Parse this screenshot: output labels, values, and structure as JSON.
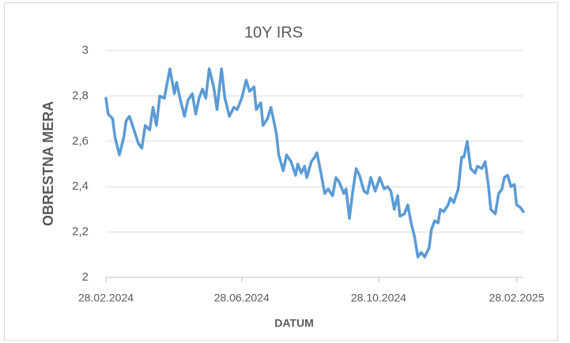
{
  "chart_data": {
    "type": "line",
    "title": "10Y IRS",
    "xlabel": "DATUM",
    "ylabel": "OBRESTNA MERA",
    "x": [
      "28.02.2024",
      "01.03.2024",
      "05.03.2024",
      "07.03.2024",
      "11.03.2024",
      "15.03.2024",
      "17.03.2024",
      "20.03.2024",
      "24.03.2024",
      "28.03.2024",
      "31.03.2024",
      "03.04.2024",
      "07.04.2024",
      "10.04.2024",
      "13.04.2024",
      "16.04.2024",
      "20.04.2024",
      "25.04.2024",
      "29.04.2024",
      "01.05.2024",
      "04.05.2024",
      "08.05.2024",
      "11.05.2024",
      "15.05.2024",
      "18.05.2024",
      "21.05.2024",
      "24.05.2024",
      "27.05.2024",
      "30.05.2024",
      "03.06.2024",
      "06.06.2024",
      "10.06.2024",
      "13.06.2024",
      "17.06.2024",
      "21.06.2024",
      "24.06.2024",
      "28.06.2024",
      "02.07.2024",
      "05.07.2024",
      "09.07.2024",
      "11.07.2024",
      "15.07.2024",
      "17.07.2024",
      "21.07.2024",
      "24.07.2024",
      "27.07.2024",
      "29.07.2024",
      "31.07.2024",
      "04.08.2024",
      "07.08.2024",
      "11.08.2024",
      "15.08.2024",
      "17.08.2024",
      "20.08.2024",
      "23.08.2024",
      "25.08.2024",
      "29.08.2024",
      "01.09.2024",
      "03.09.2024",
      "07.09.2024",
      "10.09.2024",
      "13.09.2024",
      "17.09.2024",
      "20.09.2024",
      "23.09.2024",
      "27.09.2024",
      "29.09.2024",
      "02.10.2024",
      "05.10.2024",
      "08.10.2024",
      "11.10.2024",
      "15.10.2024",
      "18.10.2024",
      "21.10.2024",
      "25.10.2024",
      "29.10.2024",
      "02.11.2024",
      "05.11.2024",
      "08.11.2024",
      "11.11.2024",
      "14.11.2024",
      "16.11.2024",
      "20.11.2024",
      "23.11.2024",
      "26.11.2024",
      "29.11.2024",
      "02.12.2024",
      "05.12.2024",
      "08.12.2024",
      "12.12.2024",
      "14.12.2024",
      "17.12.2024",
      "20.12.2024",
      "22.12.2024",
      "25.12.2024",
      "29.12.2024",
      "31.12.2024",
      "03.01.2025",
      "07.01.2025",
      "10.01.2025",
      "12.01.2025",
      "15.01.2025",
      "18.01.2025",
      "22.01.2025",
      "24.01.2025",
      "28.01.2025",
      "31.01.2025",
      "03.02.2025",
      "05.02.2025",
      "09.02.2025",
      "12.02.2025",
      "15.02.2025",
      "17.02.2025",
      "20.02.2025",
      "23.02.2025",
      "26.02.2025",
      "28.02.2025",
      "03.03.2025",
      "06.03.2025"
    ],
    "series": [
      {
        "name": "10Y IRS",
        "color": "#5b9bd5",
        "values": [
          2.79,
          2.72,
          2.7,
          2.62,
          2.54,
          2.62,
          2.69,
          2.71,
          2.65,
          2.59,
          2.57,
          2.67,
          2.65,
          2.75,
          2.67,
          2.8,
          2.79,
          2.92,
          2.81,
          2.86,
          2.79,
          2.71,
          2.78,
          2.81,
          2.72,
          2.79,
          2.83,
          2.79,
          2.92,
          2.84,
          2.74,
          2.92,
          2.79,
          2.71,
          2.75,
          2.74,
          2.79,
          2.87,
          2.82,
          2.84,
          2.74,
          2.77,
          2.67,
          2.7,
          2.75,
          2.68,
          2.63,
          2.54,
          2.47,
          2.54,
          2.51,
          2.45,
          2.5,
          2.46,
          2.49,
          2.44,
          2.51,
          2.53,
          2.55,
          2.45,
          2.37,
          2.39,
          2.36,
          2.44,
          2.42,
          2.37,
          2.39,
          2.26,
          2.38,
          2.48,
          2.45,
          2.38,
          2.37,
          2.44,
          2.38,
          2.44,
          2.39,
          2.4,
          2.38,
          2.3,
          2.36,
          2.27,
          2.28,
          2.32,
          2.24,
          2.18,
          2.09,
          2.11,
          2.09,
          2.13,
          2.21,
          2.25,
          2.24,
          2.3,
          2.29,
          2.32,
          2.35,
          2.33,
          2.39,
          2.53,
          2.53,
          2.6,
          2.48,
          2.46,
          2.49,
          2.48,
          2.51,
          2.4,
          2.3,
          2.28,
          2.37,
          2.39,
          2.44,
          2.45,
          2.4,
          2.41,
          2.32,
          2.31,
          2.29
        ]
      }
    ],
    "xlim": [
      "28.02.2024",
      "06.03.2025"
    ],
    "xticks": [
      "28.02.2024",
      "28.06.2024",
      "28.10.2024",
      "28.02.2025"
    ],
    "ylim": [
      2,
      3
    ],
    "yticks": [
      2,
      2.2,
      2.4,
      2.6,
      2.8,
      3
    ],
    "ytick_labels": [
      "2",
      "2,2",
      "2,4",
      "2,6",
      "2,8",
      "3"
    ],
    "grid": true
  }
}
